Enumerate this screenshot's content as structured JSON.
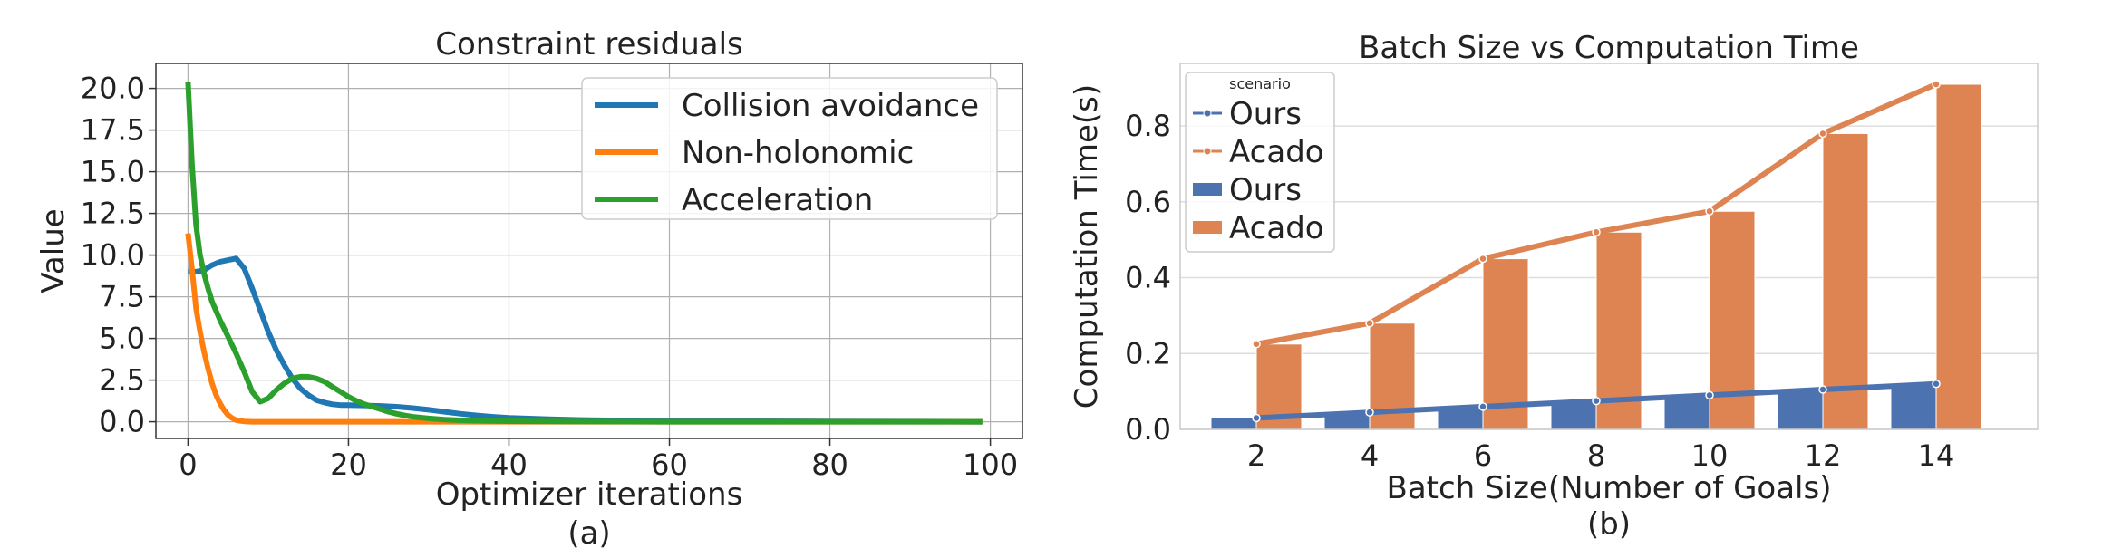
{
  "chart_data": [
    {
      "type": "line",
      "title": "Constraint residuals",
      "xlabel": "Optimizer iterations",
      "ylabel": "Value",
      "caption": "(a)",
      "xlim": [
        -4,
        104
      ],
      "ylim": [
        -1.0,
        21.5
      ],
      "xticks": [
        0,
        20,
        40,
        60,
        80,
        100
      ],
      "xtick_labels": [
        "0",
        "20",
        "40",
        "60",
        "80",
        "100"
      ],
      "yticks": [
        0,
        2.5,
        5,
        7.5,
        10,
        12.5,
        15,
        17.5,
        20
      ],
      "ytick_labels": [
        "0.0",
        "2.5",
        "5.0",
        "7.5",
        "10.0",
        "12.5",
        "15.0",
        "17.5",
        "20.0"
      ],
      "grid": true,
      "legend_position": "top-right",
      "series": [
        {
          "name": "Collision avoidance",
          "color": "#1f77b4",
          "x": [
            0,
            1,
            2,
            3,
            4,
            5,
            6,
            7,
            8,
            9,
            10,
            11,
            12,
            13,
            14,
            15,
            16,
            17,
            18,
            19,
            20,
            22,
            24,
            26,
            28,
            30,
            32,
            34,
            36,
            38,
            40,
            45,
            50,
            55,
            60,
            70,
            80,
            90,
            99
          ],
          "y": [
            9.0,
            9.0,
            9.1,
            9.4,
            9.6,
            9.7,
            9.8,
            9.2,
            8.0,
            6.7,
            5.4,
            4.3,
            3.4,
            2.6,
            2.0,
            1.6,
            1.3,
            1.15,
            1.05,
            1.0,
            1.0,
            0.98,
            0.95,
            0.9,
            0.82,
            0.72,
            0.6,
            0.48,
            0.38,
            0.3,
            0.24,
            0.15,
            0.1,
            0.07,
            0.05,
            0.03,
            0.02,
            0.01,
            0.0
          ]
        },
        {
          "name": "Non-holonomic",
          "color": "#ff7f0e",
          "x": [
            0,
            0.5,
            1,
            1.5,
            2,
            2.5,
            3,
            3.5,
            4,
            4.5,
            5,
            5.5,
            6,
            6.5,
            7,
            8,
            10,
            20,
            40,
            60,
            80,
            99
          ],
          "y": [
            11.3,
            9.2,
            6.8,
            5.4,
            4.2,
            3.2,
            2.3,
            1.6,
            1.1,
            0.7,
            0.4,
            0.22,
            0.1,
            0.05,
            0.02,
            0.0,
            0.0,
            0.0,
            0.0,
            0.0,
            0.0,
            0.0
          ]
        },
        {
          "name": "Acceleration",
          "color": "#2ca02c",
          "x": [
            0,
            0.5,
            1,
            1.5,
            2,
            2.5,
            3,
            4,
            5,
            6,
            7,
            8,
            9,
            10,
            11,
            12,
            13,
            14,
            15,
            16,
            17,
            18,
            19,
            20,
            21,
            22,
            23,
            24,
            25,
            26,
            27,
            28,
            30,
            32,
            35,
            40,
            50,
            60,
            80,
            99
          ],
          "y": [
            20.4,
            15.5,
            11.8,
            10.0,
            8.9,
            8.0,
            7.2,
            6.1,
            5.1,
            4.1,
            3.0,
            1.8,
            1.2,
            1.4,
            1.9,
            2.3,
            2.6,
            2.7,
            2.7,
            2.6,
            2.4,
            2.1,
            1.8,
            1.5,
            1.25,
            1.05,
            0.9,
            0.75,
            0.6,
            0.48,
            0.38,
            0.3,
            0.2,
            0.13,
            0.07,
            0.03,
            0.01,
            0.0,
            0.0,
            0.0
          ]
        }
      ]
    },
    {
      "type": "bar",
      "title": "Batch Size vs Computation Time",
      "xlabel": "Batch Size(Number of Goals)",
      "ylabel": "Computation Time(s)",
      "caption": "(b)",
      "categories": [
        "2",
        "4",
        "6",
        "8",
        "10",
        "12",
        "14"
      ],
      "ylim": [
        0,
        0.965
      ],
      "yticks": [
        0.0,
        0.2,
        0.4,
        0.6,
        0.8
      ],
      "ytick_labels": [
        "0.0",
        "0.2",
        "0.4",
        "0.6",
        "0.8"
      ],
      "grid": true,
      "legend_position": "top-left",
      "legend_title": "scenario",
      "series": [
        {
          "name": "Ours",
          "color": "#4c72b0",
          "values": [
            0.03,
            0.045,
            0.06,
            0.075,
            0.09,
            0.105,
            0.12
          ]
        },
        {
          "name": "Acado",
          "color": "#dd8452",
          "values": [
            0.225,
            0.28,
            0.45,
            0.52,
            0.575,
            0.78,
            0.91
          ]
        }
      ],
      "legend_entries": [
        {
          "name": "Ours",
          "kind": "line",
          "color": "#4c72b0"
        },
        {
          "name": "Acado",
          "kind": "line",
          "color": "#dd8452"
        },
        {
          "name": "Ours",
          "kind": "bar",
          "color": "#4c72b0"
        },
        {
          "name": "Acado",
          "kind": "bar",
          "color": "#dd8452"
        }
      ]
    }
  ]
}
